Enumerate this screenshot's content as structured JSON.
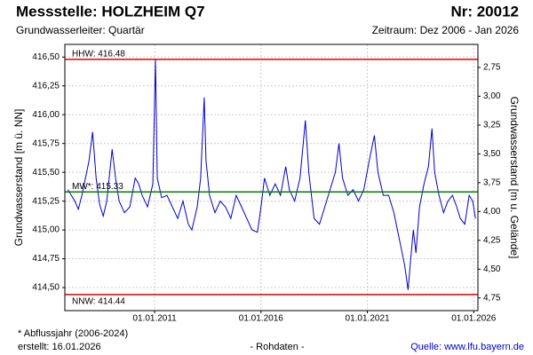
{
  "chart_data": {
    "type": "line",
    "title": "Messstelle: HOLZHEIM Q7",
    "number": "Nr: 20012",
    "subtitle": "Grundwasserleiter: Quartär",
    "period": "Zeitraum: Dez 2006 - Jan 2026",
    "ylabel": "Grundwasserstand [m ü. NN]",
    "y2label": "Grundwasserstand [m u. Gelände]",
    "footnote": "* Abflussjahr (2006-2024)",
    "created": "erstellt:  16.01.2026",
    "note": "- Rohdaten -",
    "source": "Quelle: www.lfu.bayern.de",
    "xlim": [
      "2006-10-12",
      "2026-03-14"
    ],
    "xticks": [
      {
        "value": "2011-01-01",
        "label": "01.01.2011"
      },
      {
        "value": "2016-01-01",
        "label": "01.01.2016"
      },
      {
        "value": "2021-01-01",
        "label": "01.01.2021"
      },
      {
        "value": "2026-01-01",
        "label": "01.01.2026"
      }
    ],
    "ylim": [
      414.3,
      416.61
    ],
    "yticks": [
      {
        "value": 416.5,
        "label": "416,50"
      },
      {
        "value": 416.25,
        "label": "416,25"
      },
      {
        "value": 416,
        "label": "416,00"
      },
      {
        "value": 415.75,
        "label": "415,75"
      },
      {
        "value": 415.5,
        "label": "415,50"
      },
      {
        "value": 415.25,
        "label": "415,25"
      },
      {
        "value": 415,
        "label": "415,00"
      },
      {
        "value": 414.75,
        "label": "414,75"
      },
      {
        "value": 414.5,
        "label": "414,50"
      }
    ],
    "y2lim": [
      4.86,
      2.55
    ],
    "y2ticks": [
      {
        "value": 2.75,
        "label": "2,75"
      },
      {
        "value": 3,
        "label": "3,00"
      },
      {
        "value": 3.25,
        "label": "3,25"
      },
      {
        "value": 3.5,
        "label": "3,50"
      },
      {
        "value": 3.75,
        "label": "3,75"
      },
      {
        "value": 4,
        "label": "4,00"
      },
      {
        "value": 4.25,
        "label": "4,25"
      },
      {
        "value": 4.5,
        "label": "4,50"
      },
      {
        "value": 4.75,
        "label": "4,75"
      }
    ],
    "grid": true,
    "reference_lines": [
      {
        "label": "HHW: 416.48",
        "value": 416.48,
        "color": "#e00000"
      },
      {
        "label": "MW*: 415.33",
        "value": 415.33,
        "color": "#008000"
      },
      {
        "label": "NNW: 414.44",
        "value": 414.44,
        "color": "#e00000"
      }
    ],
    "x": [
      "2006-12-01",
      "2007-02-01",
      "2007-04-01",
      "2007-06-01",
      "2007-08-01",
      "2007-10-01",
      "2007-12-01",
      "2008-02-01",
      "2008-04-01",
      "2008-06-01",
      "2008-08-01",
      "2008-10-01",
      "2009-01-01",
      "2009-03-01",
      "2009-05-01",
      "2009-08-01",
      "2009-11-01",
      "2010-02-01",
      "2010-04-01",
      "2010-06-01",
      "2010-09-01",
      "2010-12-01",
      "2011-01-15",
      "2011-02-15",
      "2011-05-01",
      "2011-08-01",
      "2011-11-01",
      "2012-02-01",
      "2012-05-01",
      "2012-08-01",
      "2012-10-01",
      "2013-01-01",
      "2013-03-01",
      "2013-05-01",
      "2013-06-01",
      "2013-08-01",
      "2013-11-01",
      "2014-02-01",
      "2014-05-01",
      "2014-08-01",
      "2014-11-01",
      "2015-02-01",
      "2015-05-01",
      "2015-08-01",
      "2015-11-01",
      "2016-01-01",
      "2016-03-01",
      "2016-06-01",
      "2016-09-01",
      "2016-12-01",
      "2017-03-01",
      "2017-05-01",
      "2017-08-01",
      "2017-11-01",
      "2018-02-01",
      "2018-04-01",
      "2018-07-01",
      "2018-10-01",
      "2019-01-01",
      "2019-04-01",
      "2019-07-01",
      "2019-09-01",
      "2019-11-01",
      "2020-02-01",
      "2020-05-01",
      "2020-08-01",
      "2020-11-01",
      "2021-02-01",
      "2021-05-01",
      "2021-07-01",
      "2021-10-01",
      "2022-01-01",
      "2022-04-01",
      "2022-06-01",
      "2022-08-01",
      "2022-10-01",
      "2022-12-01",
      "2023-01-15",
      "2023-03-01",
      "2023-04-15",
      "2023-06-15",
      "2023-09-01",
      "2023-11-15",
      "2024-01-15",
      "2024-03-01",
      "2024-05-15",
      "2024-08-01",
      "2024-10-15",
      "2025-01-01",
      "2025-03-15",
      "2025-05-15",
      "2025-08-01",
      "2025-10-15",
      "2025-12-15",
      "2026-01-31"
    ],
    "series": [
      {
        "name": "Grundwasserstand",
        "color": "#0000cc",
        "values": [
          415.35,
          415.3,
          415.25,
          415.18,
          415.3,
          415.45,
          415.6,
          415.85,
          415.45,
          415.22,
          415.12,
          415.25,
          415.7,
          415.45,
          415.25,
          415.15,
          415.2,
          415.45,
          415.4,
          415.3,
          415.2,
          415.4,
          416.48,
          415.45,
          415.28,
          415.3,
          415.2,
          415.1,
          415.25,
          415.05,
          415.0,
          415.2,
          415.45,
          416.15,
          415.6,
          415.3,
          415.15,
          415.25,
          415.2,
          415.1,
          415.3,
          415.2,
          415.1,
          415.0,
          414.98,
          415.2,
          415.45,
          415.3,
          415.4,
          415.3,
          415.55,
          415.35,
          415.25,
          415.45,
          415.95,
          415.5,
          415.1,
          415.05,
          415.2,
          415.35,
          415.5,
          415.75,
          415.45,
          415.3,
          415.35,
          415.25,
          415.35,
          415.6,
          415.82,
          415.5,
          415.3,
          415.3,
          415.15,
          415.0,
          414.85,
          414.7,
          414.48,
          414.75,
          415.0,
          414.8,
          415.2,
          415.4,
          415.55,
          415.88,
          415.5,
          415.3,
          415.15,
          415.25,
          415.3,
          415.2,
          415.1,
          415.05,
          415.3,
          415.25,
          415.1
        ]
      }
    ]
  }
}
